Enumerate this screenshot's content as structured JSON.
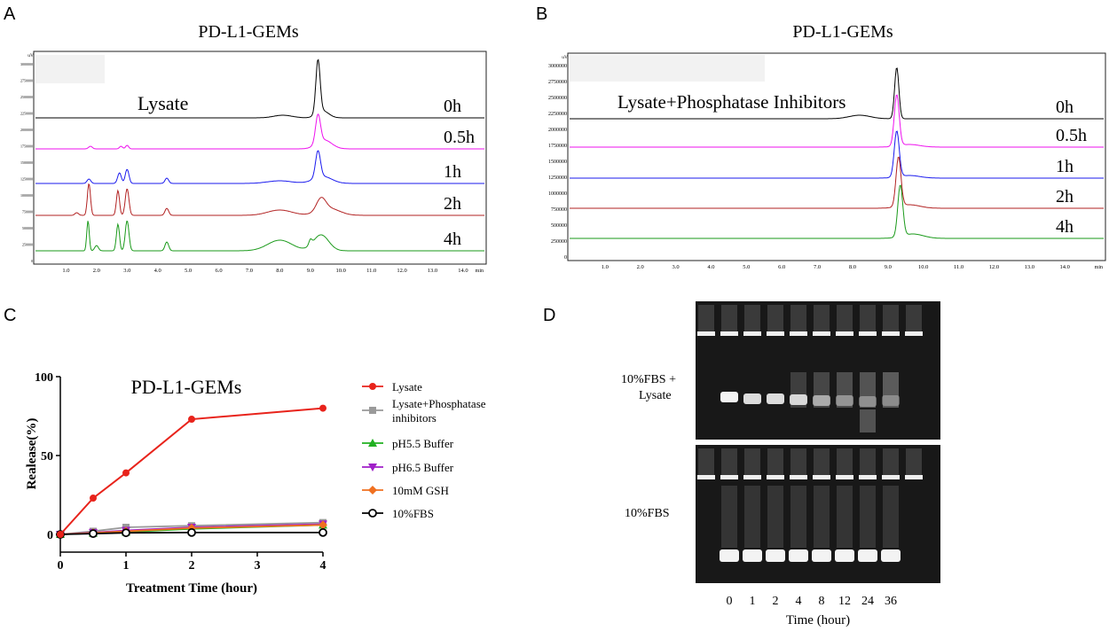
{
  "panels": {
    "A": {
      "letter": "A",
      "title": "PD-L1-GEMs",
      "annotation": "Lysate",
      "trace_labels": [
        "0h",
        "0.5h",
        "1h",
        "2h",
        "4h"
      ],
      "xticks": [
        "1.0",
        "2.0",
        "3.0",
        "4.0",
        "5.0",
        "6.0",
        "7.0",
        "8.0",
        "9.0",
        "10.0",
        "11.0",
        "12.0",
        "13.0",
        "14.0"
      ],
      "x_unit": "min",
      "y_unit": "uV",
      "yticks": [
        "3000000",
        "2750000",
        "2500000",
        "2250000",
        "2000000",
        "1750000",
        "1500000",
        "1250000",
        "1000000",
        "750000",
        "500000",
        "250000",
        "0"
      ],
      "colors": [
        "#000000",
        "#ee10ee",
        "#1a1aee",
        "#b22222",
        "#1a9a1a"
      ]
    },
    "B": {
      "letter": "B",
      "title": "PD-L1-GEMs",
      "annotation": "Lysate+Phosphatase Inhibitors",
      "trace_labels": [
        "0h",
        "0.5h",
        "1h",
        "2h",
        "4h"
      ],
      "xticks": [
        "1.0",
        "2.0",
        "3.0",
        "4.0",
        "5.0",
        "6.0",
        "7.0",
        "8.0",
        "9.0",
        "10.0",
        "11.0",
        "12.0",
        "13.0",
        "14.0"
      ],
      "x_unit": "min",
      "y_unit": "uV",
      "yticks": [
        "3000000",
        "2750000",
        "2500000",
        "2250000",
        "2000000",
        "1750000",
        "1500000",
        "1250000",
        "1000000",
        "750000",
        "500000",
        "250000",
        "0"
      ],
      "colors": [
        "#000000",
        "#ee10ee",
        "#1a1aee",
        "#b22222",
        "#1a9a1a"
      ]
    },
    "C": {
      "letter": "C"
    },
    "D": {
      "letter": "D",
      "row_labels": [
        "10%FBS +\nLysate",
        "10%FBS"
      ],
      "lane_labels": [
        "0",
        "1",
        "2",
        "4",
        "8",
        "12",
        "24",
        "36"
      ],
      "xlabel": "Time (hour)"
    }
  },
  "chart_data": [
    {
      "type": "line",
      "title": "PD-L1-GEMs",
      "xlabel": "Treatment Time (hour)",
      "ylabel": "Realease(%)",
      "x": [
        0,
        0.5,
        1,
        2,
        4
      ],
      "xlim": [
        0,
        4
      ],
      "ylim": [
        0,
        100
      ],
      "xticks": [
        0,
        1,
        2,
        3,
        4
      ],
      "yticks": [
        0,
        50,
        100
      ],
      "grid": false,
      "legend_position": "right",
      "series": [
        {
          "name": "Lysate",
          "values": [
            0,
            23,
            39,
            73,
            80
          ],
          "color": "#e8231b",
          "marker": "circle"
        },
        {
          "name": "Lysate+Phosphatase inhibitors",
          "values": [
            0,
            2,
            4.5,
            5.5,
            7.5
          ],
          "color": "#9a9a9a",
          "marker": "square"
        },
        {
          "name": "pH5.5 Buffer",
          "values": [
            0,
            0.8,
            1.5,
            3.5,
            6
          ],
          "color": "#21b021",
          "marker": "triangle-up"
        },
        {
          "name": "pH6.5 Buffer",
          "values": [
            0,
            1.2,
            2.5,
            4.5,
            6.5
          ],
          "color": "#a020c8",
          "marker": "triangle-down"
        },
        {
          "name": "10mM GSH",
          "values": [
            0,
            1,
            2,
            4,
            6
          ],
          "color": "#f07020",
          "marker": "diamond"
        },
        {
          "name": "10%FBS",
          "values": [
            0,
            0.5,
            1,
            1.2,
            1.2
          ],
          "color": "#000000",
          "marker": "open-circle"
        }
      ]
    }
  ]
}
